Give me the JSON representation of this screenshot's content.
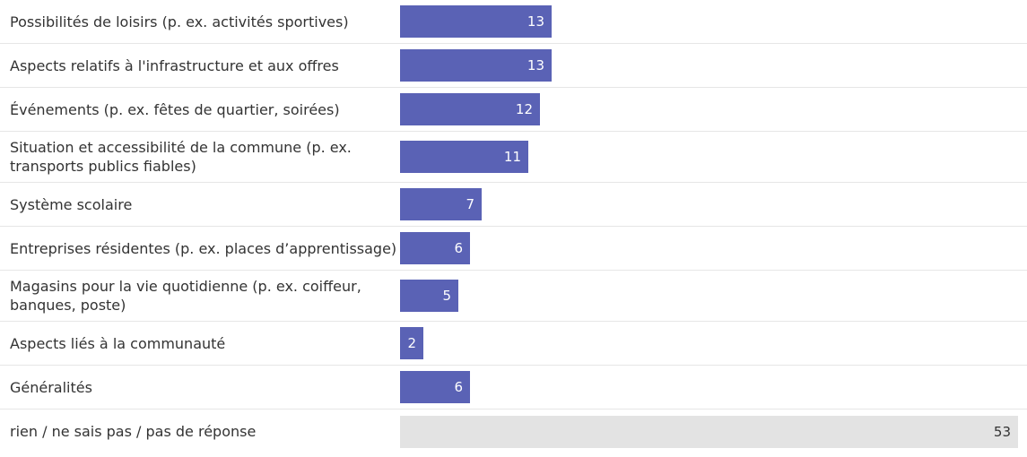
{
  "chart_data": {
    "type": "bar",
    "orientation": "horizontal",
    "categories": [
      "Possibilités de loisirs (p. ex. activités sportives)",
      "Aspects relatifs à l'infrastructure et aux offres",
      "Événements (p. ex. fêtes de quartier, soirées)",
      "Situation et accessibilité de la commune (p. ex. transports publics fiables)",
      "Système scolaire",
      "Entreprises résidentes (p. ex. places d’apprentissage)",
      "Magasins pour la vie quotidienne (p. ex. coiffeur, banques, poste)",
      "Aspects liés à la communauté",
      "Généralités",
      "rien / ne sais pas / pas de réponse"
    ],
    "values": [
      13,
      13,
      12,
      11,
      7,
      6,
      5,
      2,
      6,
      53
    ],
    "colors": [
      "#5a62b5",
      "#5a62b5",
      "#5a62b5",
      "#5a62b5",
      "#5a62b5",
      "#5a62b5",
      "#5a62b5",
      "#5a62b5",
      "#5a62b5",
      "#e3e3e3"
    ],
    "xlim": [
      0,
      53
    ]
  }
}
